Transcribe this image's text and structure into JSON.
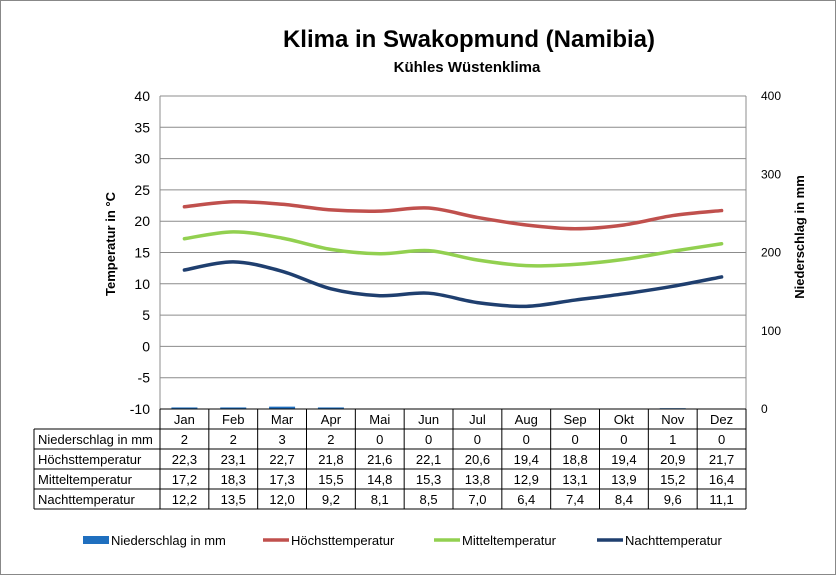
{
  "chart_data": {
    "type": "line",
    "title": "Klima in Swakopmund (Namibia)",
    "subtitle": "Kühles Wüstenklima",
    "ylabel": "Temperatur in °C",
    "y2label": "Niederschlag in mm",
    "ylim": [
      -10,
      40
    ],
    "yticks": [
      -10,
      -5,
      0,
      5,
      10,
      15,
      20,
      25,
      30,
      35,
      40
    ],
    "y2lim": [
      0,
      400
    ],
    "y2ticks": [
      0,
      100,
      200,
      300,
      400
    ],
    "categories": [
      "Jan",
      "Feb",
      "Mar",
      "Apr",
      "Mai",
      "Jun",
      "Jul",
      "Aug",
      "Sep",
      "Okt",
      "Nov",
      "Dez"
    ],
    "series": [
      {
        "name": "Niederschlag in mm",
        "kind": "bar",
        "axis": "y2",
        "color": "#1f6fbf",
        "values": [
          2,
          2,
          3,
          2,
          0,
          0,
          0,
          0,
          0,
          0,
          1,
          0
        ],
        "labels": [
          "2",
          "2",
          "3",
          "2",
          "0",
          "0",
          "0",
          "0",
          "0",
          "0",
          "1",
          "0"
        ]
      },
      {
        "name": "Höchsttemperatur",
        "kind": "line",
        "axis": "y",
        "color": "#c0504d",
        "values": [
          22.3,
          23.1,
          22.7,
          21.8,
          21.6,
          22.1,
          20.6,
          19.4,
          18.8,
          19.4,
          20.9,
          21.7
        ],
        "labels": [
          "22,3",
          "23,1",
          "22,7",
          "21,8",
          "21,6",
          "22,1",
          "20,6",
          "19,4",
          "18,8",
          "19,4",
          "20,9",
          "21,7"
        ]
      },
      {
        "name": "Mitteltemperatur",
        "kind": "line",
        "axis": "y",
        "color": "#92d050",
        "values": [
          17.2,
          18.3,
          17.3,
          15.5,
          14.8,
          15.3,
          13.8,
          12.9,
          13.1,
          13.9,
          15.2,
          16.4
        ],
        "labels": [
          "17,2",
          "18,3",
          "17,3",
          "15,5",
          "14,8",
          "15,3",
          "13,8",
          "12,9",
          "13,1",
          "13,9",
          "15,2",
          "16,4"
        ]
      },
      {
        "name": "Nachttemperatur",
        "kind": "line",
        "axis": "y",
        "color": "#1f3f6f",
        "values": [
          12.2,
          13.5,
          12.0,
          9.2,
          8.1,
          8.5,
          7.0,
          6.4,
          7.4,
          8.4,
          9.6,
          11.1
        ],
        "labels": [
          "12,2",
          "13,5",
          "12,0",
          "9,2",
          "8,1",
          "8,5",
          "7,0",
          "6,4",
          "7,4",
          "8,4",
          "9,6",
          "11,1"
        ]
      }
    ],
    "legend_position": "bottom",
    "grid": true
  }
}
